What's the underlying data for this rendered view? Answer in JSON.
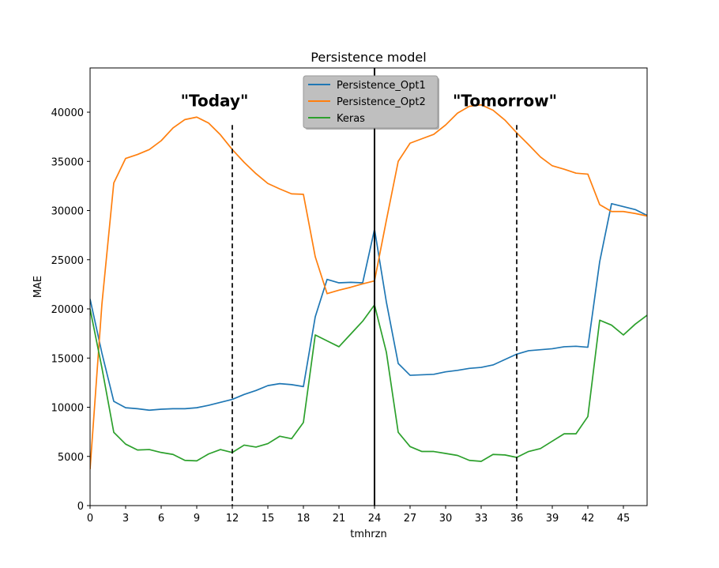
{
  "chart_data": {
    "type": "line",
    "title": "Persistence model",
    "xlabel": "tmhrzn",
    "ylabel": "MAE",
    "xlim": [
      0,
      47
    ],
    "ylim": [
      0,
      44500
    ],
    "xticks": [
      0,
      3,
      6,
      9,
      12,
      15,
      18,
      21,
      24,
      27,
      30,
      33,
      36,
      39,
      42,
      45
    ],
    "yticks": [
      0,
      5000,
      10000,
      15000,
      20000,
      25000,
      30000,
      35000,
      40000
    ],
    "grid": false,
    "legend": "upper-center",
    "x": [
      0,
      1,
      2,
      3,
      4,
      5,
      6,
      7,
      8,
      9,
      10,
      11,
      12,
      13,
      14,
      15,
      16,
      17,
      18,
      19,
      20,
      21,
      22,
      23,
      24,
      25,
      26,
      27,
      28,
      29,
      30,
      31,
      32,
      33,
      34,
      35,
      36,
      37,
      38,
      39,
      40,
      41,
      42,
      43,
      44,
      45,
      46,
      47
    ],
    "series": [
      {
        "name": "Persistence_Opt1",
        "color": "#1f77b4",
        "values": [
          21000,
          15500,
          10600,
          9950,
          9850,
          9700,
          9800,
          9850,
          9850,
          9950,
          10200,
          10500,
          10800,
          11300,
          11700,
          12200,
          12400,
          12300,
          12100,
          19200,
          23000,
          22650,
          22700,
          22650,
          28100,
          20700,
          14450,
          13250,
          13300,
          13350,
          13600,
          13750,
          13950,
          14050,
          14300,
          14850,
          15400,
          15750,
          15850,
          15950,
          16150,
          16200,
          16100,
          24800,
          30700,
          30400,
          30100,
          29500
        ]
      },
      {
        "name": "Persistence_Opt2",
        "color": "#ff7f0e",
        "values": [
          3700,
          20500,
          32800,
          35300,
          35700,
          36200,
          37100,
          38400,
          39250,
          39500,
          38900,
          37700,
          36200,
          34900,
          33750,
          32750,
          32200,
          31700,
          31650,
          25300,
          21550,
          21900,
          22200,
          22550,
          22850,
          29000,
          35000,
          36850,
          37300,
          37750,
          38700,
          39900,
          40600,
          40750,
          40200,
          39200,
          37900,
          36700,
          35450,
          34550,
          34200,
          33800,
          33700,
          30600,
          29900,
          29900,
          29700,
          29450
        ]
      },
      {
        "name": "Keras",
        "color": "#2ca02c",
        "values": [
          20000,
          14000,
          7450,
          6250,
          5650,
          5700,
          5400,
          5200,
          4600,
          4550,
          5250,
          5700,
          5400,
          6150,
          5950,
          6300,
          7050,
          6800,
          8450,
          17350,
          16750,
          16150,
          17450,
          18750,
          20400,
          15600,
          7450,
          6000,
          5500,
          5500,
          5300,
          5100,
          4600,
          4500,
          5200,
          5150,
          4900,
          5500,
          5800,
          6550,
          7300,
          7300,
          9050,
          18850,
          18350,
          17350,
          18450,
          19350
        ]
      }
    ],
    "vlines": [
      {
        "x": 12,
        "style": "dashed",
        "color": "#000000"
      },
      {
        "x": 24,
        "style": "solid",
        "color": "#000000"
      },
      {
        "x": 36,
        "style": "dashed",
        "color": "#000000"
      }
    ],
    "annotations": [
      {
        "text": "\"Today\"",
        "x": 10.5,
        "y": 40600
      },
      {
        "text": "\"Tomorrow\"",
        "x": 35.0,
        "y": 40600
      }
    ]
  }
}
